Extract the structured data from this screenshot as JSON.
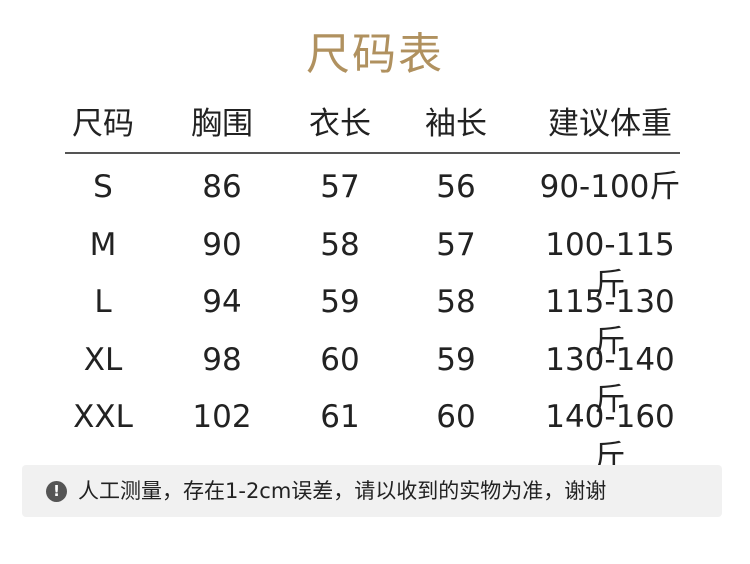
{
  "title": "尺码表",
  "table": {
    "header": [
      "尺码",
      "胸围",
      "衣长",
      "袖长",
      "建议体重"
    ],
    "rows": [
      [
        "S",
        86,
        57,
        56,
        "90-100斤"
      ],
      [
        "M",
        90,
        58,
        57,
        "100-115斤"
      ],
      [
        "L",
        94,
        59,
        58,
        "115-130斤"
      ],
      [
        "XL",
        98,
        60,
        59,
        "130-140斤"
      ],
      [
        "XXL",
        102,
        61,
        60,
        "140-160斤"
      ]
    ]
  },
  "note": "人工测量，存在1-2cm误差，请以收到的实物为准，谢谢"
}
